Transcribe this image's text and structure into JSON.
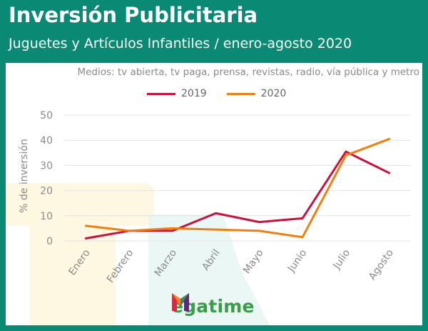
{
  "header": {
    "title": "Inversión Publicitaria",
    "subtitle": "Juguetes y Artículos Infantiles / enero-agosto 2020"
  },
  "colors": {
    "frame": "#0a8a74",
    "series_2019": "#c8123f",
    "series_2020": "#f07f12",
    "grid": "#e3e3e3",
    "axis_text": "#8a8a8a",
    "brand_green": "#3b9c49"
  },
  "brand": {
    "text": "egatime",
    "logo_icon": "megatime-m-logo-icon"
  },
  "chart_data": {
    "type": "line",
    "subtitle": "Medios: tv abierta, tv paga, prensa, revistas, radio, vía pública y metro",
    "xlabel": "",
    "ylabel": "% de inversión",
    "categories": [
      "Enero",
      "Febrero",
      "Marzo",
      "Abril",
      "Mayo",
      "Junio",
      "Julio",
      "Agosto"
    ],
    "series": [
      {
        "name": "2019",
        "values": [
          1,
          4,
          4,
          11,
          7.5,
          9,
          35.5,
          27
        ]
      },
      {
        "name": "2020",
        "values": [
          6,
          4,
          5,
          4.5,
          4,
          1.5,
          34,
          40.5
        ]
      }
    ],
    "ylim": [
      0,
      50
    ],
    "yticks": [
      0,
      10,
      20,
      30,
      40,
      50
    ],
    "grid": true,
    "legend": "top"
  }
}
